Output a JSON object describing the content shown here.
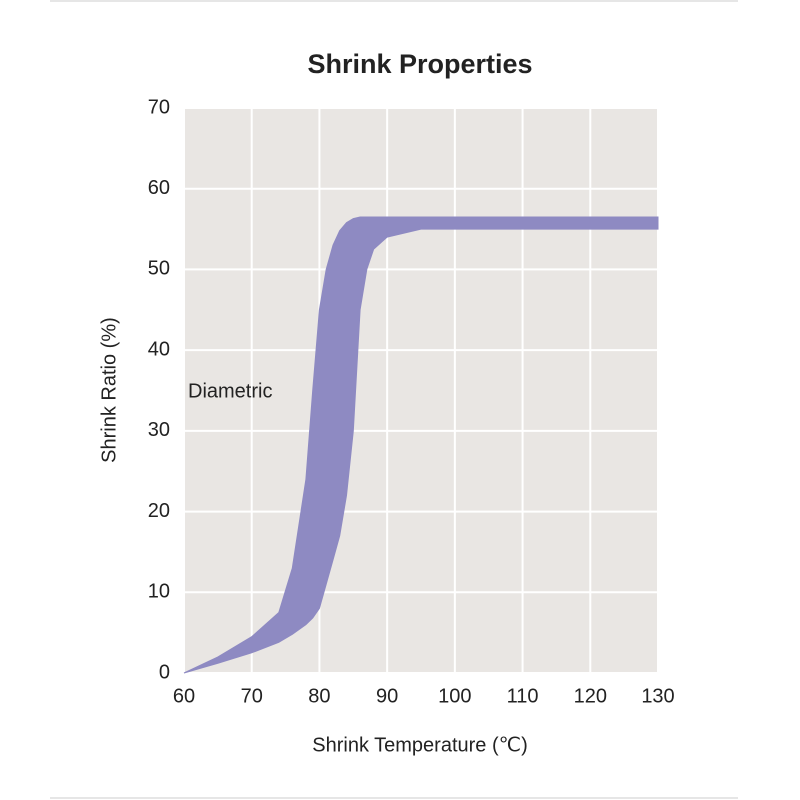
{
  "chart_data": {
    "type": "band",
    "title": "Shrink Properties",
    "xlabel": "Shrink Temperature (℃)",
    "ylabel": "Shrink Ratio (%)",
    "series": [
      {
        "name": "Diametric",
        "color": "#8e8ac2",
        "x": [
          60,
          65,
          70,
          74,
          76,
          78,
          79,
          80,
          81,
          82,
          83,
          84,
          85,
          86,
          87,
          88,
          90,
          95,
          130
        ],
        "high": [
          0,
          2,
          4.5,
          7.5,
          13,
          24,
          35,
          45,
          50,
          53,
          54.8,
          55.8,
          56.3,
          56.5,
          56.5,
          56.5,
          56.5,
          56.5,
          56.5
        ],
        "low": [
          0,
          1.2,
          2.5,
          3.8,
          4.8,
          6,
          6.8,
          8,
          11,
          14,
          17,
          22,
          30,
          45,
          50,
          52.5,
          54,
          55,
          55
        ]
      }
    ],
    "xlim": [
      60,
      130
    ],
    "xticks": [
      60,
      70,
      80,
      90,
      100,
      110,
      120,
      130
    ],
    "ylim": [
      0,
      70
    ],
    "yticks": [
      0,
      10,
      20,
      30,
      40,
      50,
      60,
      70
    ],
    "grid": true,
    "background": "#e9e6e3"
  }
}
